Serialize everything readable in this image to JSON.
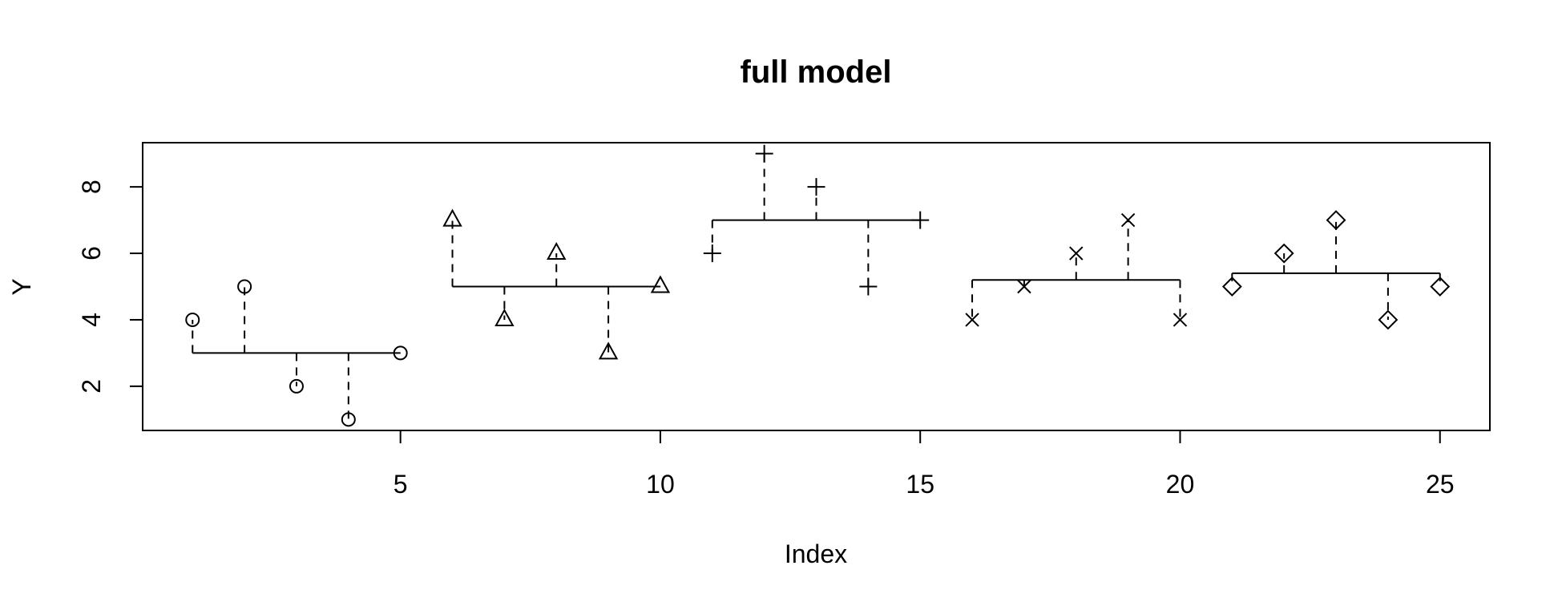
{
  "chart_data": {
    "type": "scatter",
    "title": "full model",
    "xlabel": "Index",
    "ylabel": "Y",
    "xlim": [
      0.04,
      25.96
    ],
    "ylim": [
      0.67,
      9.33
    ],
    "x_ticks": [
      5,
      10,
      15,
      20,
      25
    ],
    "y_ticks": [
      2,
      4,
      6,
      8
    ],
    "grid": false,
    "series": [
      {
        "marker": "circle",
        "x": [
          1,
          2,
          3,
          4,
          5
        ],
        "y": [
          4,
          5,
          2,
          1,
          3
        ],
        "fitted": 3.0
      },
      {
        "marker": "triangle",
        "x": [
          6,
          7,
          8,
          9,
          10
        ],
        "y": [
          7,
          4,
          6,
          3,
          5
        ],
        "fitted": 5.0
      },
      {
        "marker": "plus",
        "x": [
          11,
          12,
          13,
          14,
          15
        ],
        "y": [
          6,
          9,
          8,
          5,
          7
        ],
        "fitted": 7.0
      },
      {
        "marker": "cross",
        "x": [
          16,
          17,
          18,
          19,
          20
        ],
        "y": [
          4,
          5,
          6,
          7,
          4
        ],
        "fitted": 5.2
      },
      {
        "marker": "diamond",
        "x": [
          21,
          22,
          23,
          24,
          25
        ],
        "y": [
          5,
          6,
          7,
          4,
          5
        ],
        "fitted": 5.4
      }
    ]
  }
}
